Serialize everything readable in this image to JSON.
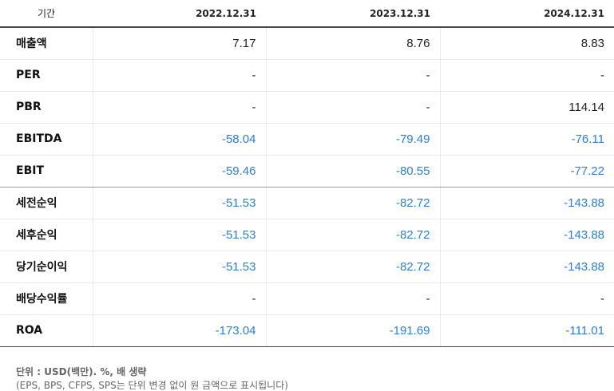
{
  "header": {
    "label": "기간",
    "periods": [
      "2022.12.31",
      "2023.12.31",
      "2024.12.31"
    ]
  },
  "rows": [
    {
      "label": "매출액",
      "values": [
        "7.17",
        "8.76",
        "8.83"
      ]
    },
    {
      "label": "PER",
      "values": [
        "-",
        "-",
        "-"
      ]
    },
    {
      "label": "PBR",
      "values": [
        "-",
        "-",
        "114.14"
      ]
    },
    {
      "label": "EBITDA",
      "values": [
        "-58.04",
        "-79.49",
        "-76.11"
      ]
    },
    {
      "label": "EBIT",
      "values": [
        "-59.46",
        "-80.55",
        "-77.22"
      ]
    },
    {
      "label": "세전순익",
      "values": [
        "-51.53",
        "-82.72",
        "-143.88"
      ]
    },
    {
      "label": "세후순익",
      "values": [
        "-51.53",
        "-82.72",
        "-143.88"
      ]
    },
    {
      "label": "당기순이익",
      "values": [
        "-51.53",
        "-82.72",
        "-143.88"
      ]
    },
    {
      "label": "배당수익률",
      "values": [
        "-",
        "-",
        "-"
      ]
    },
    {
      "label": "ROA",
      "values": [
        "-173.04",
        "-191.69",
        "-111.01"
      ]
    }
  ],
  "notes": {
    "unit": "단위 : USD(백만). %, 배 생략",
    "exception": "(EPS, BPS, CFPS, SPS는 단위 변경 없이 원 금액으로 표시됩니다)"
  },
  "colors": {
    "negative": "#2b7fd6",
    "text": "#222222"
  }
}
